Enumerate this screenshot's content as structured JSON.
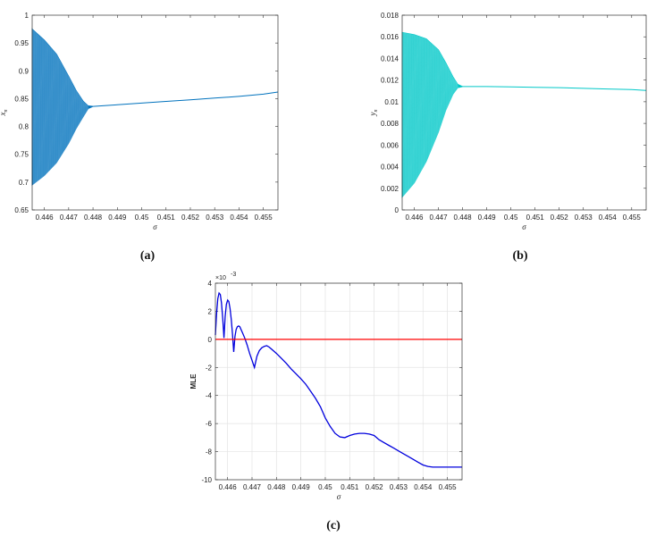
{
  "panels": [
    {
      "caption": "(a)",
      "ylabel_base": "x",
      "ylabel_sub": "n",
      "xlabel": "σ"
    },
    {
      "caption": "(b)",
      "ylabel_base": "y",
      "ylabel_sub": "n",
      "xlabel": "σ"
    },
    {
      "caption": "(c)",
      "ylabel": "MLE",
      "xlabel": "σ",
      "y_multiplier": "×10",
      "y_exponent": "-3"
    }
  ],
  "chart_data": [
    {
      "type": "area",
      "xlabel": "σ",
      "ylabel": "x_n",
      "xlim": [
        0.4455,
        0.4556
      ],
      "ylim": [
        0.65,
        1.0
      ],
      "xticks": [
        "0.446",
        "0.447",
        "0.448",
        "0.449",
        "0.45",
        "0.451",
        "0.452",
        "0.453",
        "0.454",
        "0.455"
      ],
      "xtick_values": [
        0.446,
        0.447,
        0.448,
        0.449,
        0.45,
        0.451,
        0.452,
        0.453,
        0.454,
        0.455
      ],
      "yticks": [
        "0.65",
        "0.7",
        "0.75",
        "0.8",
        "0.85",
        "0.9",
        "0.95",
        "1"
      ],
      "ytick_values": [
        0.65,
        0.7,
        0.75,
        0.8,
        0.85,
        0.9,
        0.95,
        1.0
      ],
      "grid": false,
      "color": "#0072bd",
      "series": [
        {
          "x": [
            0.4455,
            0.446,
            0.4465,
            0.447,
            0.4473,
            0.4476,
            0.4478,
            0.448,
            0.449,
            0.45,
            0.451,
            0.452,
            0.453,
            0.454,
            0.455,
            0.4556
          ],
          "upper": [
            0.975,
            0.955,
            0.93,
            0.89,
            0.865,
            0.845,
            0.837,
            0.836,
            0.839,
            0.842,
            0.845,
            0.848,
            0.851,
            0.854,
            0.858,
            0.862
          ],
          "lower": [
            0.695,
            0.712,
            0.735,
            0.77,
            0.796,
            0.818,
            0.832,
            0.836,
            0.839,
            0.842,
            0.845,
            0.848,
            0.851,
            0.854,
            0.858,
            0.862
          ]
        }
      ]
    },
    {
      "type": "area",
      "xlabel": "σ",
      "ylabel": "y_n",
      "xlim": [
        0.4455,
        0.4556
      ],
      "ylim": [
        0,
        0.018
      ],
      "xticks": [
        "0.446",
        "0.447",
        "0.448",
        "0.449",
        "0.45",
        "0.451",
        "0.452",
        "0.453",
        "0.454",
        "0.455"
      ],
      "xtick_values": [
        0.446,
        0.447,
        0.448,
        0.449,
        0.45,
        0.451,
        0.452,
        0.453,
        0.454,
        0.455
      ],
      "yticks": [
        "0",
        "0.002",
        "0.004",
        "0.006",
        "0.008",
        "0.01",
        "0.012",
        "0.014",
        "0.016",
        "0.018"
      ],
      "ytick_values": [
        0,
        0.002,
        0.004,
        0.006,
        0.008,
        0.01,
        0.012,
        0.014,
        0.016,
        0.018
      ],
      "grid": false,
      "color": "#00c8c8",
      "series": [
        {
          "x": [
            0.4455,
            0.446,
            0.4465,
            0.447,
            0.4473,
            0.4476,
            0.4478,
            0.448,
            0.449,
            0.45,
            0.451,
            0.452,
            0.453,
            0.454,
            0.455,
            0.4556
          ],
          "upper": [
            0.0164,
            0.0162,
            0.0158,
            0.0148,
            0.0136,
            0.0123,
            0.0116,
            0.0114,
            0.0114,
            0.01138,
            0.01134,
            0.0113,
            0.01124,
            0.01118,
            0.01112,
            0.01105
          ],
          "lower": [
            0.0012,
            0.0025,
            0.0045,
            0.0072,
            0.0092,
            0.0107,
            0.0113,
            0.0114,
            0.0114,
            0.01138,
            0.01134,
            0.0113,
            0.01124,
            0.01118,
            0.01112,
            0.01105
          ]
        }
      ]
    },
    {
      "type": "line",
      "xlabel": "σ",
      "ylabel": "MLE",
      "y_scale_note": "×10^-3",
      "xlim": [
        0.4455,
        0.4556
      ],
      "ylim": [
        -10,
        4
      ],
      "xticks": [
        "0.446",
        "0.447",
        "0.448",
        "0.449",
        "0.45",
        "0.451",
        "0.452",
        "0.453",
        "0.454",
        "0.455"
      ],
      "xtick_values": [
        0.446,
        0.447,
        0.448,
        0.449,
        0.45,
        0.451,
        0.452,
        0.453,
        0.454,
        0.455
      ],
      "yticks": [
        "4",
        "2",
        "0",
        "-2",
        "-4",
        "-6",
        "-8",
        "-10"
      ],
      "ytick_values": [
        4,
        2,
        0,
        -2,
        -4,
        -6,
        -8,
        -10
      ],
      "grid": true,
      "series": [
        {
          "color": "#0000dd",
          "x": [
            0.4455,
            0.44555,
            0.4456,
            0.44565,
            0.4457,
            0.44575,
            0.4458,
            0.44585,
            0.4459,
            0.44595,
            0.446,
            0.44605,
            0.4461,
            0.44615,
            0.4462,
            0.44625,
            0.4463,
            0.44635,
            0.4464,
            0.44645,
            0.4465,
            0.44655,
            0.4466,
            0.4467,
            0.4468,
            0.4469,
            0.447,
            0.4471,
            0.4472,
            0.4473,
            0.4474,
            0.4475,
            0.4476,
            0.4477,
            0.4478,
            0.448,
            0.4482,
            0.4484,
            0.4486,
            0.4488,
            0.449,
            0.4492,
            0.4494,
            0.4496,
            0.4498,
            0.45,
            0.4502,
            0.4504,
            0.4506,
            0.4508,
            0.451,
            0.4512,
            0.4514,
            0.4516,
            0.4518,
            0.452,
            0.4521,
            0.4522,
            0.4524,
            0.4526,
            0.4528,
            0.453,
            0.4532,
            0.4534,
            0.4536,
            0.4538,
            0.454,
            0.4542,
            0.4544,
            0.4546,
            0.4548,
            0.455,
            0.4552,
            0.4554,
            0.4556
          ],
          "y": [
            0.3,
            1.9,
            2.9,
            3.3,
            3.2,
            2.6,
            1.5,
            0.1,
            1.6,
            2.5,
            2.8,
            2.7,
            2.2,
            1.4,
            0.4,
            -0.9,
            0.2,
            0.7,
            0.9,
            0.95,
            0.9,
            0.7,
            0.5,
            0.1,
            -0.4,
            -1.0,
            -1.5,
            -2.0,
            -1.2,
            -0.8,
            -0.6,
            -0.5,
            -0.45,
            -0.55,
            -0.7,
            -1.0,
            -1.35,
            -1.7,
            -2.1,
            -2.45,
            -2.8,
            -3.2,
            -3.7,
            -4.2,
            -4.8,
            -5.6,
            -6.2,
            -6.7,
            -6.95,
            -7.0,
            -6.85,
            -6.75,
            -6.7,
            -6.7,
            -6.75,
            -6.85,
            -7.0,
            -7.15,
            -7.35,
            -7.55,
            -7.75,
            -7.95,
            -8.15,
            -8.35,
            -8.55,
            -8.75,
            -8.95,
            -9.05,
            -9.1,
            -9.1,
            -9.1,
            -9.1,
            -9.1,
            -9.1,
            -9.1
          ]
        },
        {
          "color": "#ff0000",
          "x": [
            0.4455,
            0.4556
          ],
          "y": [
            0,
            0
          ]
        }
      ]
    }
  ]
}
